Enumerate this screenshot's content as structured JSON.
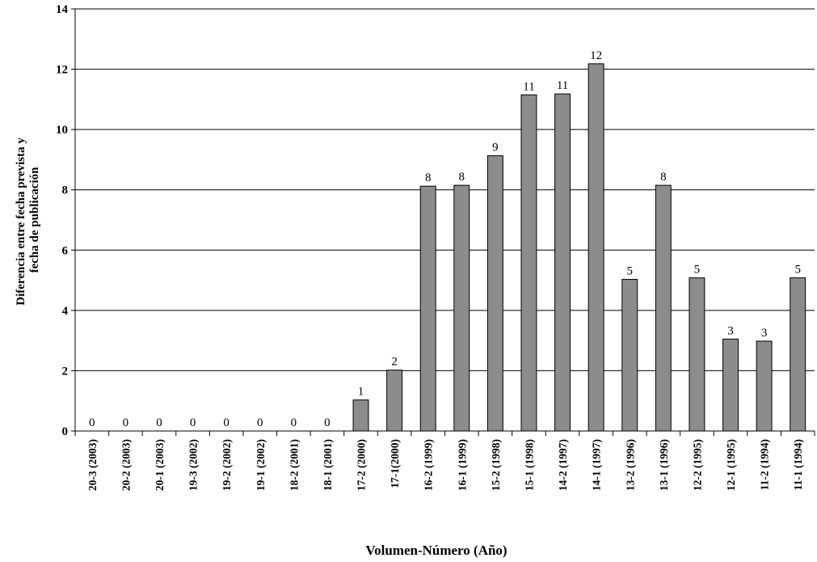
{
  "chart_data": {
    "type": "bar",
    "xlabel": "Volumen-Número (Año)",
    "ylabel_lines": [
      "Diferencia entre fecha prevista y",
      "fecha de publicación"
    ],
    "ylim": [
      0,
      14
    ],
    "yticks": [
      0,
      2,
      4,
      6,
      8,
      10,
      12,
      14
    ],
    "grid": "horizontal",
    "bar_color": "#8c8c8c",
    "categories": [
      "20-3 (2003)",
      "20-2 (2003)",
      "20-1 (2003)",
      "19-3 (2002)",
      "19-2 (2002)",
      "19-1 (2002)",
      "18-2 (2001)",
      "18-1 (2001)",
      "17-2 (2000)",
      "17-1(2000)",
      "16-2 (1999)",
      "16-1 (1999)",
      "15-2 (1998)",
      "15-1 (1998)",
      "14-2 (1997)",
      "14-1 (1997)",
      "13-2 (1996)",
      "13-1 (1996)",
      "12-2 (1995)",
      "12-1 (1995)",
      "11-2 (1994)",
      "11-1 (1994)"
    ],
    "values": [
      0,
      0,
      0,
      0,
      0,
      0,
      0,
      0,
      1.03,
      2.02,
      8.12,
      8.15,
      9.13,
      11.15,
      11.18,
      12.18,
      5.03,
      8.15,
      5.08,
      3.05,
      2.98,
      5.08
    ],
    "data_labels": [
      "0",
      "0",
      "0",
      "0",
      "0",
      "0",
      "0",
      "0",
      "1",
      "2",
      "8",
      "8",
      "9",
      "11",
      "11",
      "12",
      "5",
      "8",
      "5",
      "3",
      "3",
      "5"
    ]
  }
}
